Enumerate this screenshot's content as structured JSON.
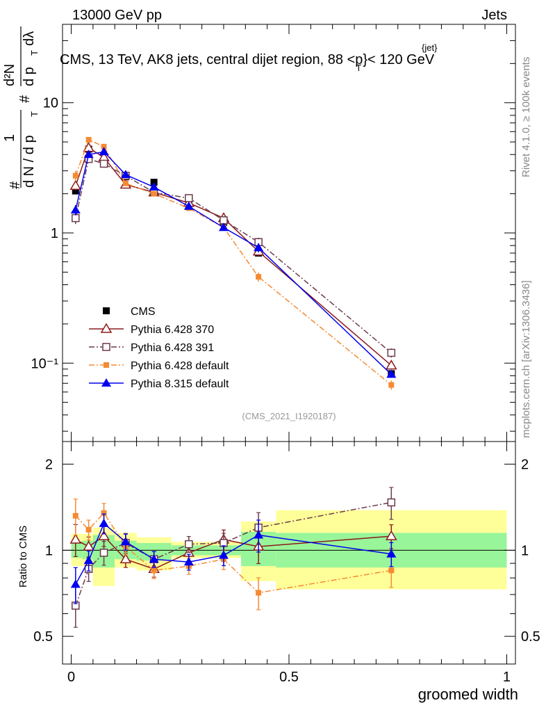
{
  "header": {
    "left": "13000 GeV pp",
    "right": "Jets",
    "plot_title": "CMS, 13 TeV, AK8 jets, central dijet region, 88 <p",
    "plot_title_sup": "{jet}",
    "plot_title_sub": "T",
    "plot_title_tail": "}< 120 GeV",
    "y_title_parts": [
      "#",
      "1",
      "d N / d p",
      "T",
      "#",
      "d²N",
      "d p",
      "T",
      "dλ"
    ],
    "ratio_ylabel": "Ratio to CMS",
    "xlabel": "groomed width",
    "analysis_id": "(CMS_2021_I1920187)",
    "rivet_label": "Rivet 4.1.0, ≥ 100k events",
    "mcplots_label": "mcplots.cern.ch [arXiv:1306.3436]"
  },
  "colors": {
    "cms": "#000000",
    "py6_370": "#8b1a1a",
    "py6_391": "#6b3a4a",
    "py6_default": "#f58a32",
    "py8_default": "#0000ee",
    "band_inner": "#99f599",
    "band_outer": "#ffff99"
  },
  "chart_data": {
    "type": "line",
    "x_axis": {
      "label": "groomed width",
      "range": [
        -0.02,
        1.02
      ],
      "ticks": [
        "0",
        "0.5",
        "1"
      ],
      "tick_values": [
        0,
        0.5,
        1
      ]
    },
    "main_y_axis": {
      "scale": "log",
      "range": [
        0.025,
        40
      ],
      "tick_labels": [
        "10⁻¹",
        "1",
        "10"
      ],
      "tick_values": [
        0.1,
        1,
        10
      ]
    },
    "ratio_y_axis": {
      "scale": "log",
      "range": [
        0.4,
        2.4
      ],
      "tick_labels": [
        "0.5",
        "1",
        "2"
      ],
      "tick_values": [
        0.5,
        1,
        2
      ]
    },
    "x": [
      0.01,
      0.04,
      0.075,
      0.125,
      0.19,
      0.27,
      0.35,
      0.43,
      0.735
    ],
    "bins": [
      [
        0,
        0.025
      ],
      [
        0.025,
        0.05
      ],
      [
        0.05,
        0.1
      ],
      [
        0.1,
        0.15
      ],
      [
        0.15,
        0.23
      ],
      [
        0.23,
        0.31
      ],
      [
        0.31,
        0.39
      ],
      [
        0.39,
        0.47
      ],
      [
        0.47,
        1.0
      ]
    ],
    "band_outer": [
      [
        0.88,
        1.14
      ],
      [
        0.88,
        1.14
      ],
      [
        0.75,
        1.2
      ],
      [
        0.87,
        1.15
      ],
      [
        0.85,
        1.11
      ],
      [
        0.94,
        1.07
      ],
      [
        0.94,
        1.07
      ],
      [
        0.78,
        1.26
      ],
      [
        0.73,
        1.38
      ]
    ],
    "band_inner": [
      [
        0.94,
        1.07
      ],
      [
        0.93,
        1.08
      ],
      [
        0.87,
        1.13
      ],
      [
        0.93,
        1.08
      ],
      [
        0.92,
        1.06
      ],
      [
        0.96,
        1.04
      ],
      [
        0.96,
        1.04
      ],
      [
        0.88,
        1.16
      ],
      [
        0.87,
        1.15
      ]
    ],
    "series": [
      {
        "name": "CMS",
        "key": "cms",
        "marker": "square-filled",
        "dash": "",
        "values": [
          2.1,
          4.4,
          3.4,
          2.7,
          2.45,
          1.75,
          1.2,
          0.7,
          0.083
        ],
        "ratio": [
          1,
          1,
          1,
          1,
          1,
          1,
          1,
          1,
          1
        ],
        "err": [
          0.05,
          0.05,
          0.05,
          0.05,
          0.05,
          0.05,
          0.05,
          0.05,
          0.05
        ]
      },
      {
        "name": "Pythia 6.428 370",
        "key": "py6_370",
        "marker": "triangle-open",
        "dash": "",
        "values": [
          2.3,
          4.5,
          3.8,
          2.35,
          2.05,
          1.7,
          1.3,
          0.72,
          0.096
        ],
        "ratio": [
          1.09,
          1.03,
          1.12,
          0.93,
          0.86,
          0.98,
          1.09,
          1.03,
          1.12
        ],
        "err": [
          0.08,
          0.05,
          0.05,
          0.04,
          0.04,
          0.04,
          0.05,
          0.08,
          0.06
        ]
      },
      {
        "name": "Pythia 6.428 391",
        "key": "py6_391",
        "marker": "square-open",
        "dash": "8,3,2,3",
        "values": [
          1.3,
          3.7,
          3.4,
          2.75,
          2.05,
          1.85,
          1.25,
          0.85,
          0.12
        ],
        "ratio": [
          0.64,
          0.86,
          0.98,
          1.06,
          0.93,
          1.05,
          1.06,
          1.2,
          1.47
        ],
        "err": [
          0.1,
          0.06,
          0.06,
          0.05,
          0.04,
          0.04,
          0.05,
          0.08,
          0.08
        ]
      },
      {
        "name": "Pythia 6.428 default",
        "key": "py6_default",
        "marker": "square-filled-small",
        "dash": "8,3,2,3",
        "values": [
          2.75,
          5.2,
          4.6,
          2.4,
          2.0,
          1.55,
          1.1,
          0.46,
          0.068
        ],
        "ratio": [
          1.32,
          1.18,
          1.35,
          1.03,
          0.85,
          0.88,
          0.93,
          0.71,
          0.85
        ],
        "err": [
          0.09,
          0.05,
          0.05,
          0.04,
          0.04,
          0.04,
          0.05,
          0.08,
          0.08
        ]
      },
      {
        "name": "Pythia 8.315 default",
        "key": "py8_default",
        "marker": "triangle-filled",
        "dash": "",
        "values": [
          1.5,
          4.0,
          4.2,
          2.8,
          2.25,
          1.6,
          1.1,
          0.77,
          0.082
        ],
        "ratio": [
          0.76,
          0.92,
          1.24,
          1.07,
          0.93,
          0.91,
          0.96,
          1.13,
          0.97
        ],
        "err": [
          0.09,
          0.05,
          0.05,
          0.04,
          0.04,
          0.04,
          0.05,
          0.08,
          0.06
        ]
      }
    ]
  }
}
